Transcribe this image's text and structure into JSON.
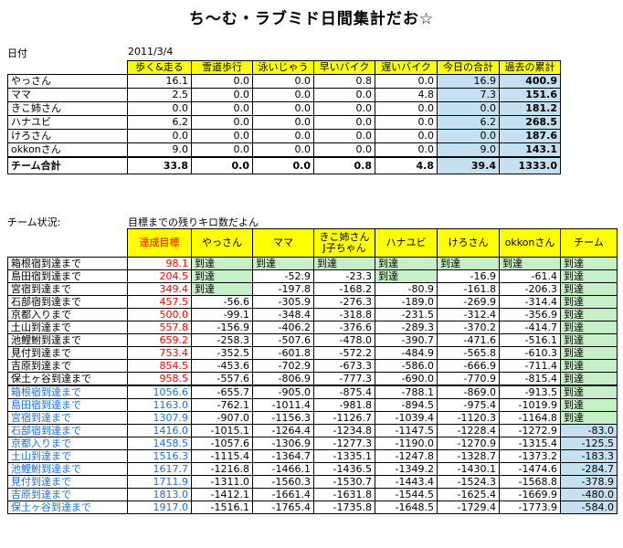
{
  "title": "ち～む・ラブミド日間集計だお☆",
  "date_label": "日付",
  "date_value": "2011/3/4",
  "summary": {
    "headers": [
      "歩く&走る",
      "雪道歩行",
      "泳いじゃう",
      "早いバイク",
      "遅いバイク",
      "今日の合計",
      "過去の累計"
    ],
    "rows": [
      {
        "name": "やっさん",
        "vals": [
          "16.1",
          "0.0",
          "0.0",
          "0.8",
          "0.0",
          "16.9",
          "400.9"
        ]
      },
      {
        "name": "ママ",
        "vals": [
          "2.5",
          "0.0",
          "0.0",
          "0.0",
          "4.8",
          "7.3",
          "151.6"
        ]
      },
      {
        "name": "きこ姉さん",
        "vals": [
          "0.0",
          "0.0",
          "0.0",
          "0.0",
          "0.0",
          "0.0",
          "181.2"
        ]
      },
      {
        "name": "ハナユビ",
        "vals": [
          "6.2",
          "0.0",
          "0.0",
          "0.0",
          "0.0",
          "6.2",
          "268.5"
        ]
      },
      {
        "name": "けろさん",
        "vals": [
          "0.0",
          "0.0",
          "0.0",
          "0.0",
          "0.0",
          "0.0",
          "187.6"
        ]
      },
      {
        "name": "okkonさん",
        "vals": [
          "9.0",
          "0.0",
          "0.0",
          "0.0",
          "0.0",
          "9.0",
          "143.1"
        ]
      }
    ],
    "total": {
      "name": "チーム合計",
      "vals": [
        "33.8",
        "0.0",
        "0.0",
        "0.8",
        "4.8",
        "39.4",
        "1333.0"
      ]
    }
  },
  "status_label": "チーム状況:",
  "status_desc": "目標までの残りキロ数だよん",
  "goals": {
    "headers": [
      "達成目標",
      "やっさん",
      "ママ",
      "きこ姉さん J子ちゃん",
      "ハナユビ",
      "けろさん",
      "okkonさん",
      "チーム"
    ],
    "rows": [
      {
        "name": "箱根宿到達まで",
        "target": "98.1",
        "vals": [
          "到達",
          "到達",
          "到達",
          "到達",
          "到達",
          "到達",
          "到達"
        ]
      },
      {
        "name": "島田宿到達まで",
        "target": "204.5",
        "vals": [
          "到達",
          "-52.9",
          "-23.3",
          "到達",
          "-16.9",
          "-61.4",
          "到達"
        ]
      },
      {
        "name": "宮宿到達まで",
        "target": "349.4",
        "vals": [
          "到達",
          "-197.8",
          "-168.2",
          "-80.9",
          "-161.8",
          "-206.3",
          "到達"
        ]
      },
      {
        "name": "石部宿到達まで",
        "target": "457.5",
        "vals": [
          "-56.6",
          "-305.9",
          "-276.3",
          "-189.0",
          "-269.9",
          "-314.4",
          "到達"
        ]
      },
      {
        "name": "京都入りまで",
        "target": "500.0",
        "vals": [
          "-99.1",
          "-348.4",
          "-318.8",
          "-231.5",
          "-312.4",
          "-356.9",
          "到達"
        ]
      },
      {
        "name": "土山到達まで",
        "target": "557.8",
        "vals": [
          "-156.9",
          "-406.2",
          "-376.6",
          "-289.3",
          "-370.2",
          "-414.7",
          "到達"
        ]
      },
      {
        "name": "池鯉鮒到達まで",
        "target": "659.2",
        "vals": [
          "-258.3",
          "-507.6",
          "-478.0",
          "-390.7",
          "-471.6",
          "-516.1",
          "到達"
        ]
      },
      {
        "name": "見付到達まで",
        "target": "753.4",
        "vals": [
          "-352.5",
          "-601.8",
          "-572.2",
          "-484.9",
          "-565.8",
          "-610.3",
          "到達"
        ]
      },
      {
        "name": "吉原到達まで",
        "target": "854.5",
        "vals": [
          "-453.6",
          "-702.9",
          "-673.3",
          "-586.0",
          "-666.9",
          "-711.4",
          "到達"
        ]
      },
      {
        "name": "保土ヶ谷到達まで",
        "target": "958.5",
        "vals": [
          "-557.6",
          "-806.9",
          "-777.3",
          "-690.0",
          "-770.9",
          "-815.4",
          "到達"
        ]
      },
      {
        "name": "箱根宿到達まで",
        "target": "1056.6",
        "vals": [
          "-655.7",
          "-905.0",
          "-875.4",
          "-788.1",
          "-869.0",
          "-913.5",
          "到達"
        ]
      },
      {
        "name": "島田宿到達まで",
        "target": "1163.0",
        "vals": [
          "-762.1",
          "-1011.4",
          "-981.8",
          "-894.5",
          "-975.4",
          "-1019.9",
          "到達"
        ]
      },
      {
        "name": "宮宿到達まで",
        "target": "1307.9",
        "vals": [
          "-907.0",
          "-1156.3",
          "-1126.7",
          "-1039.4",
          "-1120.3",
          "-1164.8",
          "到達"
        ]
      },
      {
        "name": "石部宿到達まで",
        "target": "1416.0",
        "vals": [
          "-1015.1",
          "-1264.4",
          "-1234.8",
          "-1147.5",
          "-1228.4",
          "-1272.9",
          "-83.0"
        ]
      },
      {
        "name": "京都入りまで",
        "target": "1458.5",
        "vals": [
          "-1057.6",
          "-1306.9",
          "-1277.3",
          "-1190.0",
          "-1270.9",
          "-1315.4",
          "-125.5"
        ]
      },
      {
        "name": "土山到達まで",
        "target": "1516.3",
        "vals": [
          "-1115.4",
          "-1364.7",
          "-1335.1",
          "-1247.8",
          "-1328.7",
          "-1373.2",
          "-183.3"
        ]
      },
      {
        "name": "池鯉鮒到達まで",
        "target": "1617.7",
        "vals": [
          "-1216.8",
          "-1466.1",
          "-1436.5",
          "-1349.2",
          "-1430.1",
          "-1474.6",
          "-284.7"
        ]
      },
      {
        "name": "見付到達まで",
        "target": "1711.9",
        "vals": [
          "-1311.0",
          "-1560.3",
          "-1530.7",
          "-1443.4",
          "-1524.3",
          "-1568.8",
          "-378.9"
        ]
      },
      {
        "name": "吉原到達まで",
        "target": "1813.0",
        "vals": [
          "-1412.1",
          "-1661.4",
          "-1631.8",
          "-1544.5",
          "-1625.4",
          "-1669.9",
          "-480.0"
        ]
      },
      {
        "name": "保土ヶ谷到達まで",
        "target": "1917.0",
        "vals": [
          "-1516.1",
          "-1765.4",
          "-1735.8",
          "-1648.5",
          "-1729.4",
          "-1773.9",
          "-584.0"
        ]
      }
    ]
  }
}
